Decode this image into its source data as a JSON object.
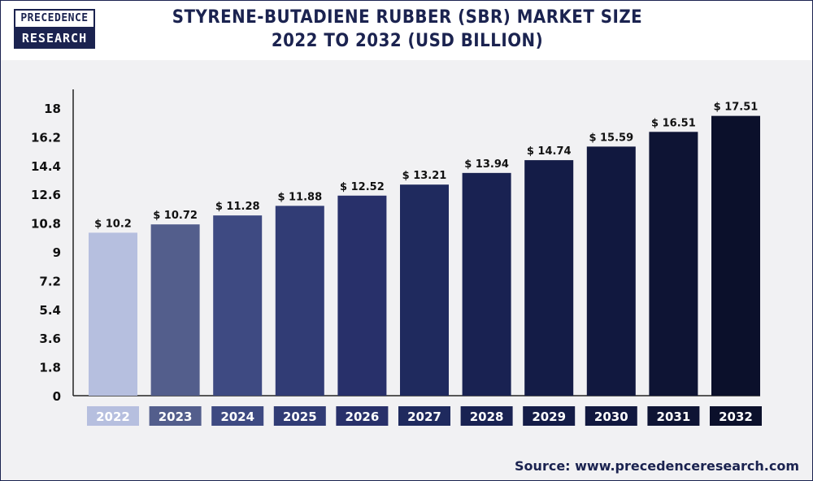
{
  "brand": {
    "line1": "PRECEDENCE",
    "line2": "RESEARCH"
  },
  "header": {
    "title_line1": "STYRENE-BUTADIENE RUBBER (SBR) MARKET SIZE",
    "title_line2": "2022 TO 2032 (USD BILLION)"
  },
  "source": "Source: www.precedenceresearch.com",
  "chart_data": {
    "type": "bar",
    "title": "STYRENE-BUTADIENE RUBBER (SBR) MARKET SIZE 2022 TO 2032 (USD BILLION)",
    "categories": [
      "2022",
      "2023",
      "2024",
      "2025",
      "2026",
      "2027",
      "2028",
      "2029",
      "2030",
      "2031",
      "2032"
    ],
    "values": [
      10.2,
      10.72,
      11.28,
      11.88,
      12.52,
      13.21,
      13.94,
      14.74,
      15.59,
      16.51,
      17.51
    ],
    "data_labels": [
      "$ 10.2",
      "$ 10.72",
      "$ 11.28",
      "$ 11.88",
      "$ 12.52",
      "$ 13.21",
      "$ 13.94",
      "$ 14.74",
      "$ 15.59",
      "$ 16.51",
      "$ 17.51"
    ],
    "yticks": [
      "0",
      "1.8",
      "3.6",
      "5.4",
      "7.2",
      "9",
      "10.8",
      "12.6",
      "14.4",
      "16.2",
      "18"
    ],
    "ylim": [
      0,
      18
    ],
    "xlabel": "",
    "ylabel": "",
    "grid": false,
    "legend": "none",
    "colors": [
      "#b6bfdf",
      "#535e8c",
      "#3e4a82",
      "#313c75",
      "#28306a",
      "#1f2a5e",
      "#192252",
      "#141c47",
      "#11183f",
      "#0e1434",
      "#0b102b"
    ]
  }
}
